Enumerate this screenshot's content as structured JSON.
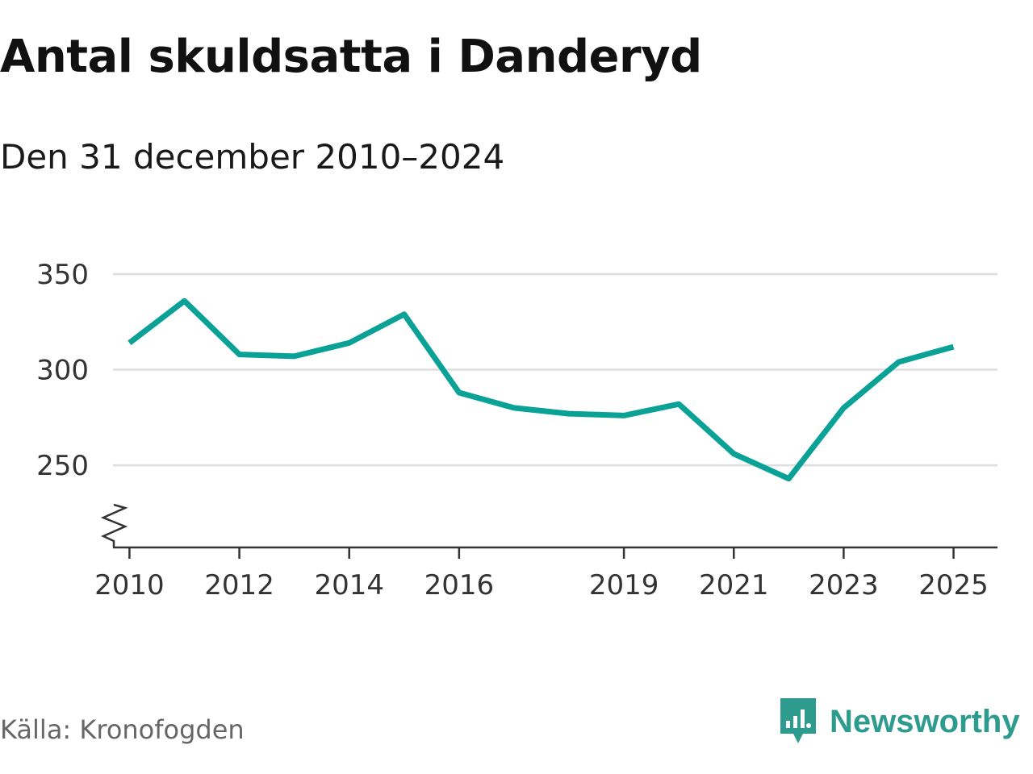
{
  "header": {
    "title": "Antal skuldsatta i Danderyd",
    "subtitle": "Den 31 december 2010–2024"
  },
  "footer": {
    "source": "Källa: Kronofogden",
    "brand": "Newsworthy"
  },
  "colors": {
    "line": "#0aa197",
    "grid": "#dddddd",
    "axis": "#333333",
    "brand": "#2e9b8f"
  },
  "chart_data": {
    "type": "line",
    "title": "Antal skuldsatta i Danderyd",
    "subtitle": "Den 31 december 2010–2024",
    "xlabel": "",
    "ylabel": "",
    "xlim": [
      2009.7,
      2025.8
    ],
    "ylim": [
      207,
      350
    ],
    "y_axis_break": true,
    "grid": true,
    "x_ticks": [
      2010,
      2012,
      2014,
      2016,
      2019,
      2021,
      2023,
      2025
    ],
    "y_ticks": [
      250,
      300,
      350
    ],
    "series": [
      {
        "name": "Antal skuldsatta",
        "x": [
          2010,
          2011,
          2012,
          2013,
          2014,
          2015,
          2016,
          2017,
          2018,
          2019,
          2020,
          2021,
          2022,
          2023,
          2024,
          2025
        ],
        "values": [
          314,
          336,
          308,
          307,
          314,
          329,
          288,
          280,
          277,
          276,
          282,
          256,
          243,
          280,
          304,
          312
        ]
      }
    ]
  }
}
